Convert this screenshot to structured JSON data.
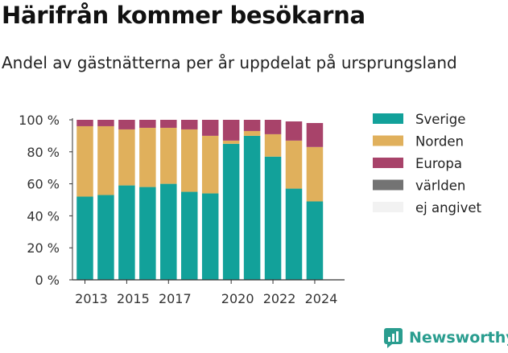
{
  "header": {
    "title": "Härifrån kommer besökarna",
    "subtitle": "Andel av gästnätterna per år uppdelat på ursprungsland"
  },
  "brand": {
    "name": "Newsworthy",
    "icon": "newsworthy-logo-icon",
    "color": "#2a9d8f"
  },
  "chart_data": {
    "type": "bar",
    "stacked": true,
    "title": "",
    "xlabel": "",
    "ylabel": "",
    "ylim": [
      0,
      100
    ],
    "yticks": [
      0,
      20,
      40,
      60,
      80,
      100
    ],
    "ytick_labels": [
      "0 %",
      "20 %",
      "40 %",
      "60 %",
      "80 %",
      "100 %"
    ],
    "categories": [
      "2013",
      "2014",
      "2015",
      "2016",
      "2017",
      "2018",
      "2019",
      "2020",
      "2021",
      "2022",
      "2023",
      "2024"
    ],
    "xtick_labels": [
      "2013",
      "",
      "2015",
      "",
      "2017",
      "",
      "",
      "2020",
      "",
      "2022",
      "",
      "2024"
    ],
    "grid": false,
    "legend_position": "right",
    "series": [
      {
        "name": "Sverige",
        "color": "#12a19a",
        "values": [
          52,
          53,
          59,
          58,
          60,
          55,
          54,
          85,
          90,
          77,
          57,
          49
        ]
      },
      {
        "name": "Norden",
        "color": "#e0b05c",
        "values": [
          44,
          43,
          35,
          37,
          35,
          39,
          36,
          2,
          3,
          14,
          30,
          34
        ]
      },
      {
        "name": "Europa",
        "color": "#a8436a",
        "values": [
          4,
          4,
          6,
          5,
          5,
          6,
          10,
          13,
          7,
          9,
          12,
          15
        ]
      },
      {
        "name": "världen",
        "color": "#737373",
        "values": [
          0,
          0,
          0,
          0,
          0,
          0,
          0,
          0,
          0,
          0,
          0,
          0
        ]
      },
      {
        "name": "ej angivet",
        "color": "#f2f2f2",
        "values": [
          0,
          0,
          0,
          0,
          0,
          0,
          0,
          0,
          0,
          0,
          0,
          0
        ]
      }
    ]
  }
}
